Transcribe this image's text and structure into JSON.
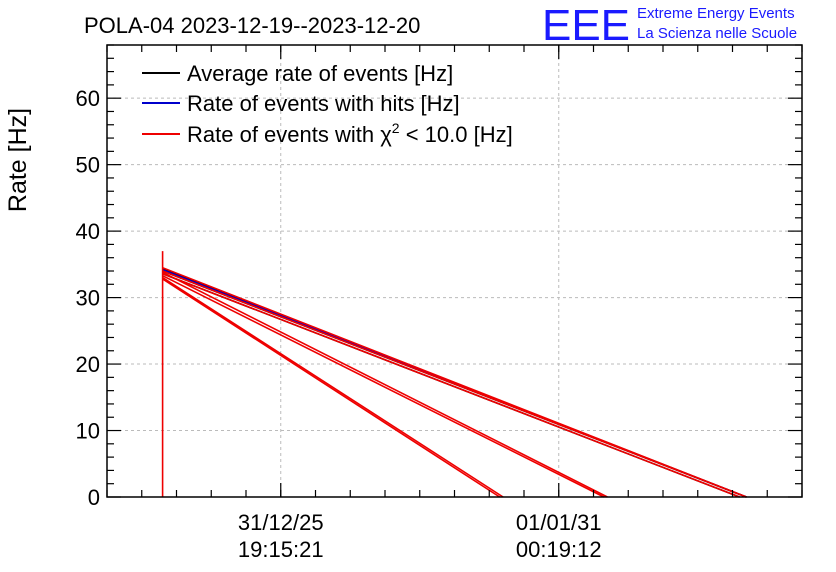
{
  "header": {
    "title": "POLA-04 2023-12-19--2023-12-20",
    "logo_text": "EEE",
    "logo_line1": "Extreme Energy Events",
    "logo_line2": "La Scienza nelle Scuole"
  },
  "colors": {
    "average": "#000000",
    "hits": "#0000cc",
    "chi2": "#ee0000",
    "grid": "#bbbbbb",
    "logo": "#1a1aff"
  },
  "chart_data": {
    "type": "line",
    "title": "POLA-04 2023-12-19--2023-12-20",
    "xlabel": "",
    "ylabel": "Rate [Hz]",
    "ylim": [
      0,
      68
    ],
    "yticks": [
      0,
      10,
      20,
      30,
      40,
      50,
      60
    ],
    "xlim": [
      0,
      100
    ],
    "xticks": [
      {
        "x": 25,
        "date": "31/12/25",
        "time": "19:15:21"
      },
      {
        "x": 65,
        "date": "01/01/31",
        "time": "00:19:12"
      }
    ],
    "grid": true,
    "legend_position": "top-left",
    "legend": [
      {
        "label": "Average rate of events [Hz]",
        "color_key": "average"
      },
      {
        "label": "Rate of events with hits [Hz]",
        "color_key": "hits"
      },
      {
        "label_prefix": "Rate of events with ",
        "label_symbol": "χ",
        "label_sup": "2",
        "label_suffix": " < 10.0 [Hz]",
        "color_key": "chi2"
      }
    ],
    "series": [
      {
        "name": "Average rate of events [Hz]",
        "color_key": "average",
        "segments": [
          [
            [
              8,
              34.3
            ],
            [
              92,
              0
            ]
          ],
          [
            [
              8,
              34.0
            ],
            [
              92,
              0
            ]
          ],
          [
            [
              8,
              33.6
            ],
            [
              91,
              0
            ]
          ]
        ]
      },
      {
        "name": "Rate of events with hits [Hz]",
        "color_key": "hits",
        "segments": [
          [
            [
              8,
              34.2
            ],
            [
              92,
              0
            ]
          ]
        ]
      },
      {
        "name": "Rate of events with χ2 < 10.0 [Hz]",
        "color_key": "chi2",
        "segments": [
          [
            [
              8,
              37.0
            ],
            [
              8,
              0
            ]
          ],
          [
            [
              8,
              34.5
            ],
            [
              92,
              0
            ]
          ],
          [
            [
              8,
              34.0
            ],
            [
              92,
              0
            ]
          ],
          [
            [
              8,
              33.6
            ],
            [
              91,
              0
            ]
          ],
          [
            [
              8,
              33.8
            ],
            [
              72,
              0
            ]
          ],
          [
            [
              8,
              33.3
            ],
            [
              71.5,
              0
            ]
          ],
          [
            [
              8,
              33.0
            ],
            [
              57,
              0
            ]
          ],
          [
            [
              8,
              32.8
            ],
            [
              56.5,
              0
            ]
          ]
        ]
      }
    ]
  }
}
